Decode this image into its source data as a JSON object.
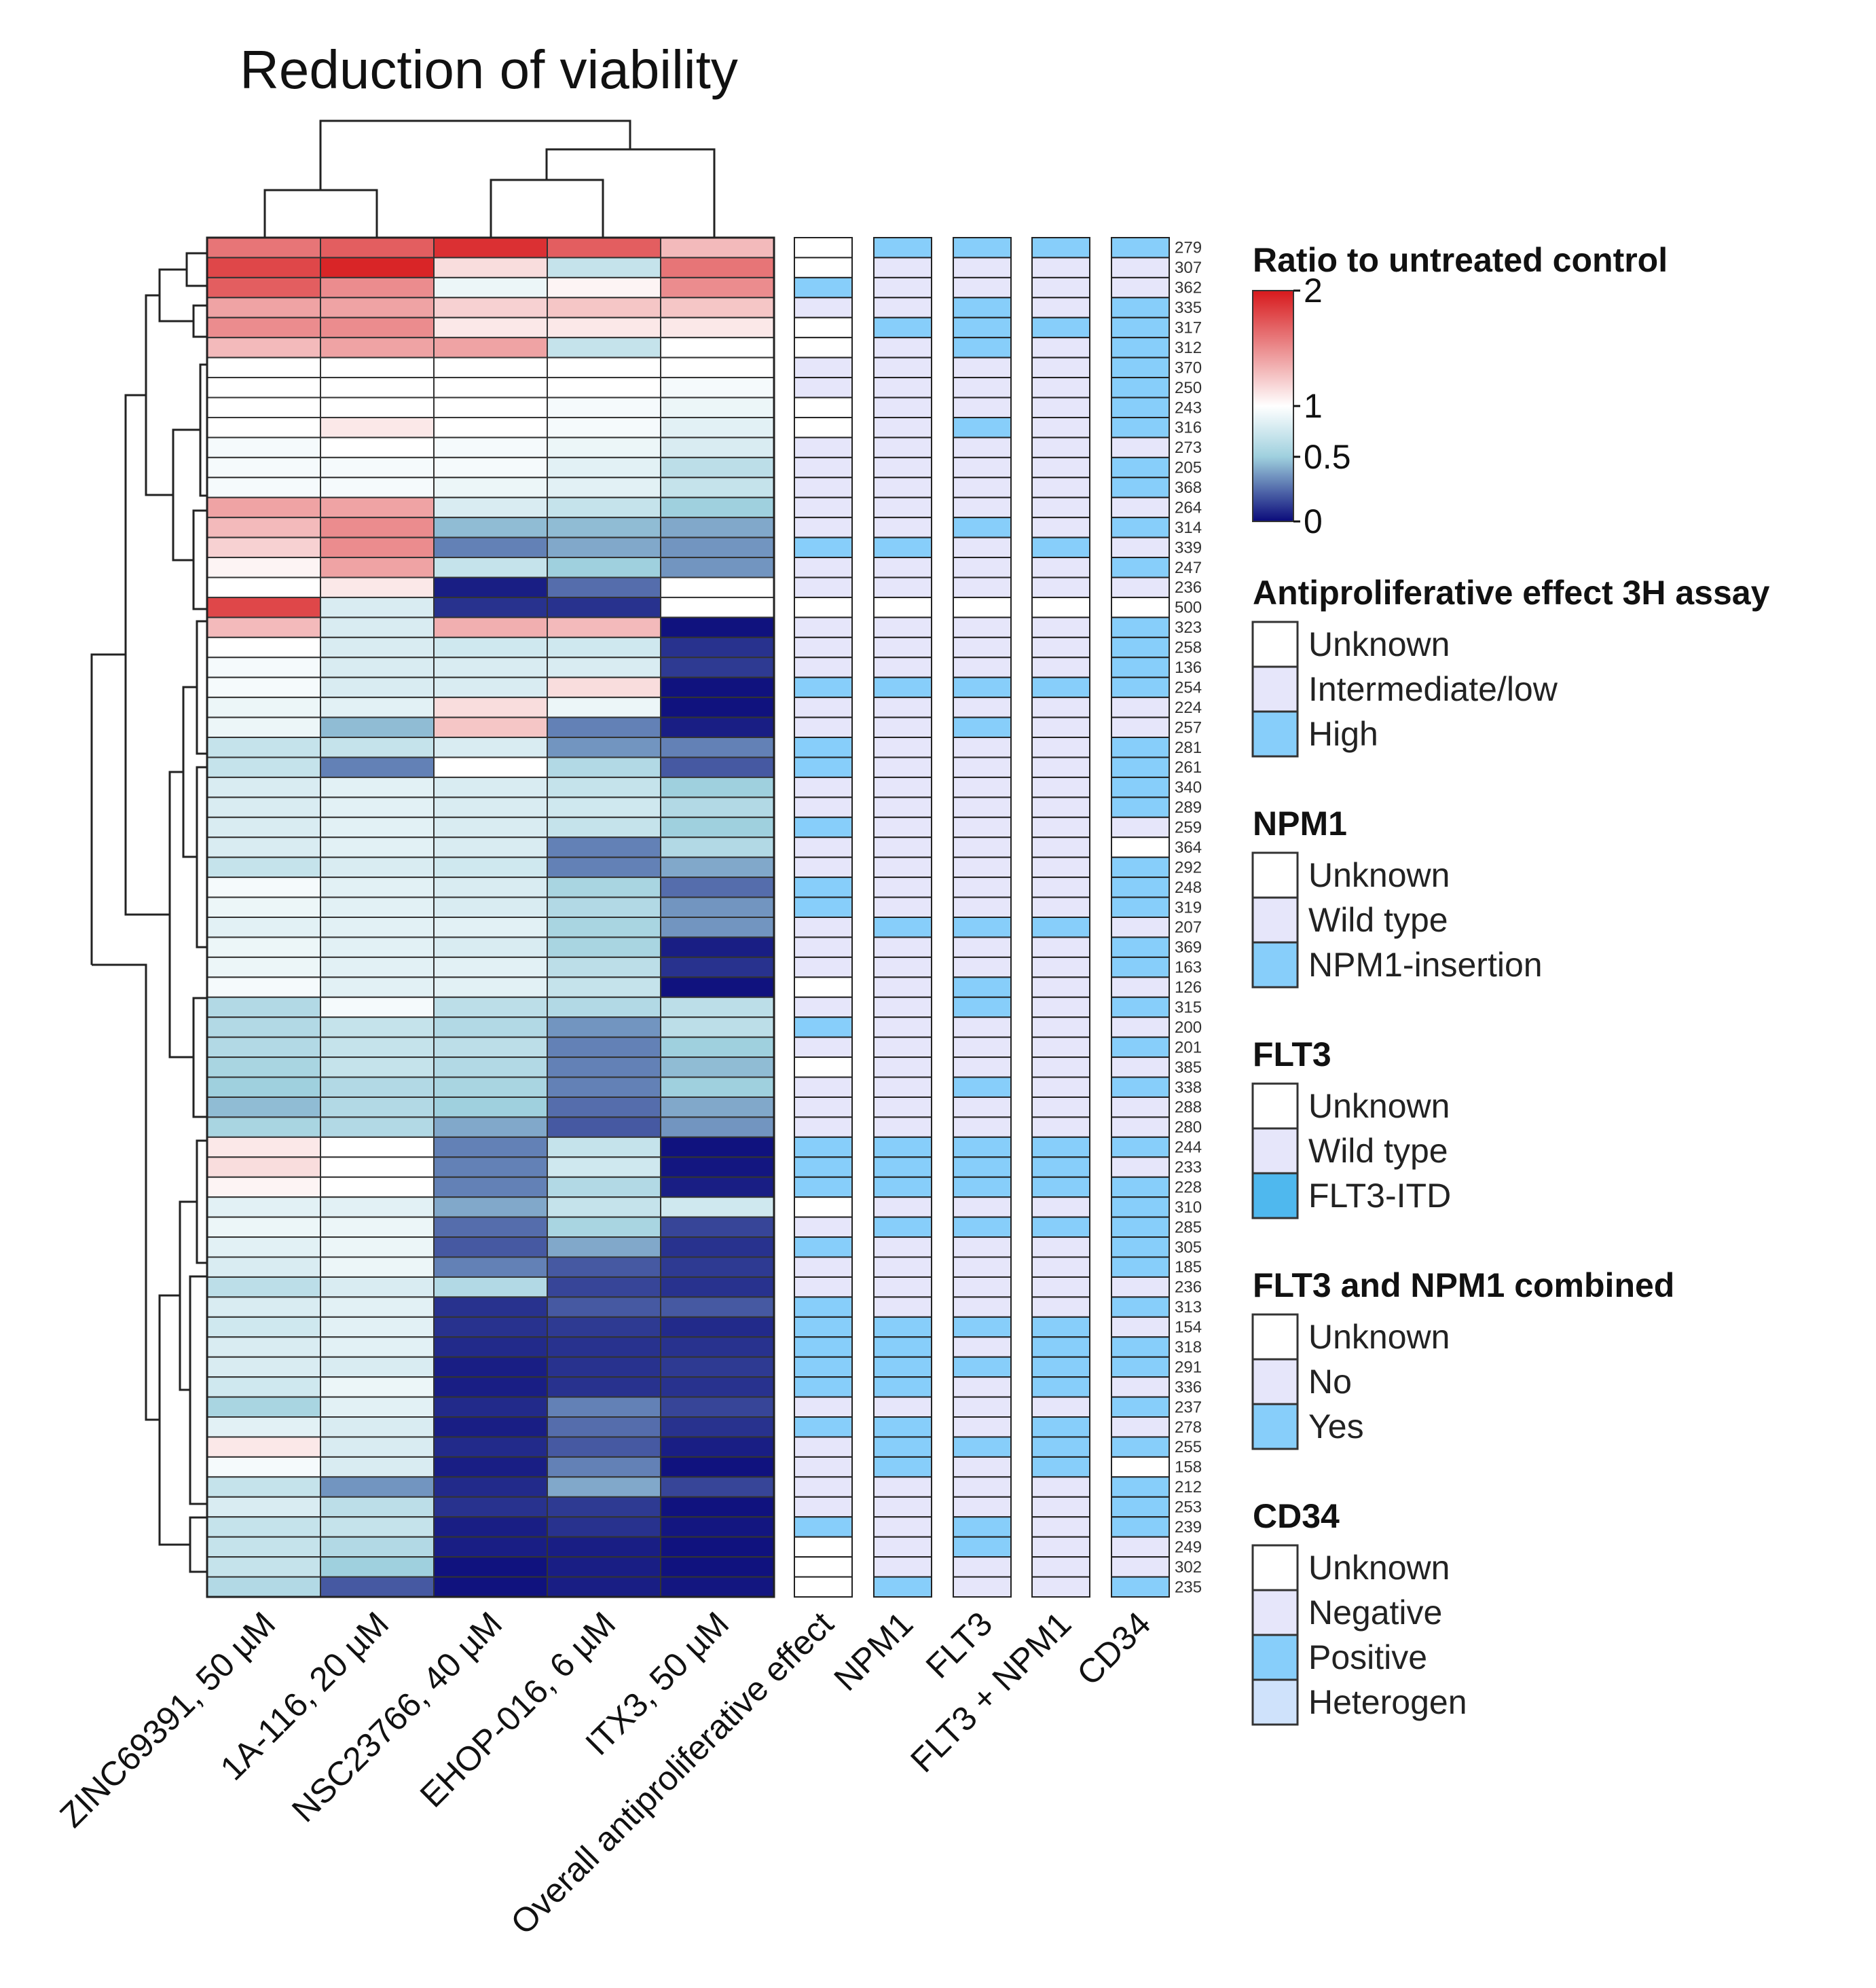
{
  "chart_data": {
    "type": "heatmap",
    "title": "Reduction of viability",
    "columns": [
      "ZINC69391, 50 µM",
      "1A-116, 20 µM",
      "NSC23766, 40 µM",
      "EHOP-016, 6 µM",
      "ITX3, 50 µM"
    ],
    "annotation_columns": [
      "Overall antiproliferative effect",
      "NPM1",
      "FLT3",
      "FLT3 + NPM1",
      "CD34"
    ],
    "row_labels": [
      "279",
      "307",
      "362",
      "335",
      "317",
      "312",
      "370",
      "250",
      "243",
      "316",
      "273",
      "205",
      "368",
      "264",
      "314",
      "339",
      "247",
      "236",
      "500",
      "323",
      "258",
      "136",
      "254",
      "224",
      "257",
      "281",
      "261",
      "340",
      "289",
      "259",
      "364",
      "292",
      "248",
      "319",
      "207",
      "369",
      "163",
      "126",
      "315",
      "200",
      "201",
      "385",
      "338",
      "288",
      "280",
      "244",
      "233",
      "228",
      "310",
      "285",
      "305",
      "185",
      "236",
      "313",
      "154",
      "318",
      "291",
      "336",
      "237",
      "278",
      "255",
      "158",
      "212",
      "253",
      "239",
      "249",
      "302",
      "235"
    ],
    "color_scale": {
      "title": "Ratio to untreated control",
      "ticks": [
        "2",
        "1",
        "0.5",
        "0"
      ],
      "tick_values": [
        2,
        1,
        0.5,
        0
      ],
      "colors": [
        "#d7191c",
        "#ffffff",
        "#9fd0de",
        "#0a0a7a"
      ]
    },
    "values": [
      [
        1.6,
        1.7,
        1.9,
        1.7,
        1.3
      ],
      [
        1.8,
        1.95,
        1.15,
        0.7,
        1.6
      ],
      [
        1.7,
        1.5,
        0.9,
        1.05,
        1.5
      ],
      [
        1.4,
        1.4,
        1.2,
        1.25,
        1.25
      ],
      [
        1.5,
        1.5,
        1.1,
        1.1,
        1.1
      ],
      [
        1.3,
        1.4,
        1.4,
        0.7,
        1.0
      ],
      [
        1.0,
        1.0,
        1.0,
        1.0,
        1.0
      ],
      [
        1.0,
        1.0,
        1.0,
        1.0,
        0.95
      ],
      [
        1.0,
        1.0,
        1.0,
        0.95,
        0.9
      ],
      [
        1.0,
        1.1,
        1.0,
        0.95,
        0.85
      ],
      [
        0.95,
        1.0,
        0.95,
        0.9,
        0.8
      ],
      [
        0.95,
        0.95,
        0.95,
        0.85,
        0.65
      ],
      [
        0.95,
        0.95,
        0.9,
        0.85,
        0.7
      ],
      [
        1.4,
        1.4,
        0.8,
        0.7,
        0.5
      ],
      [
        1.3,
        1.5,
        0.45,
        0.45,
        0.4
      ],
      [
        1.2,
        1.5,
        0.3,
        0.4,
        0.35
      ],
      [
        1.05,
        1.4,
        0.7,
        0.5,
        0.35
      ],
      [
        1.0,
        1.1,
        0.05,
        0.25,
        1.0
      ],
      [
        1.8,
        0.8,
        0.1,
        0.1,
        1.0
      ],
      [
        1.3,
        0.8,
        1.35,
        1.3,
        0.02
      ],
      [
        1.0,
        0.8,
        0.75,
        0.75,
        0.1
      ],
      [
        0.95,
        0.8,
        0.8,
        0.8,
        0.12
      ],
      [
        0.95,
        0.8,
        0.8,
        1.15,
        0.02
      ],
      [
        0.9,
        0.85,
        1.15,
        0.9,
        0.02
      ],
      [
        0.9,
        0.45,
        1.25,
        0.3,
        0.05
      ],
      [
        0.7,
        0.7,
        0.8,
        0.35,
        0.3
      ],
      [
        0.7,
        0.3,
        1.0,
        0.6,
        0.2
      ],
      [
        0.8,
        0.85,
        0.8,
        0.7,
        0.5
      ],
      [
        0.8,
        0.85,
        0.8,
        0.75,
        0.6
      ],
      [
        0.8,
        0.85,
        0.8,
        0.7,
        0.5
      ],
      [
        0.8,
        0.85,
        0.8,
        0.3,
        0.6
      ],
      [
        0.7,
        0.8,
        0.75,
        0.3,
        0.4
      ],
      [
        0.95,
        0.85,
        0.8,
        0.55,
        0.25
      ],
      [
        0.9,
        0.85,
        0.8,
        0.6,
        0.35
      ],
      [
        0.85,
        0.85,
        0.85,
        0.55,
        0.35
      ],
      [
        0.9,
        0.85,
        0.8,
        0.55,
        0.05
      ],
      [
        0.9,
        0.85,
        0.85,
        0.65,
        0.1
      ],
      [
        0.95,
        0.85,
        0.85,
        0.7,
        0.02
      ],
      [
        0.6,
        0.95,
        0.65,
        0.6,
        0.65
      ],
      [
        0.6,
        0.7,
        0.6,
        0.35,
        0.65
      ],
      [
        0.6,
        0.7,
        0.65,
        0.3,
        0.5
      ],
      [
        0.55,
        0.7,
        0.6,
        0.3,
        0.45
      ],
      [
        0.5,
        0.6,
        0.55,
        0.3,
        0.5
      ],
      [
        0.45,
        0.6,
        0.5,
        0.25,
        0.4
      ],
      [
        0.55,
        0.6,
        0.4,
        0.2,
        0.35
      ],
      [
        1.1,
        1.0,
        0.3,
        0.7,
        0.02
      ],
      [
        1.15,
        1.0,
        0.3,
        0.75,
        0.03
      ],
      [
        1.05,
        1.0,
        0.3,
        0.6,
        0.05
      ],
      [
        0.85,
        0.85,
        0.4,
        0.7,
        0.75
      ],
      [
        0.9,
        0.9,
        0.25,
        0.55,
        0.15
      ],
      [
        0.85,
        0.9,
        0.2,
        0.4,
        0.1
      ],
      [
        0.8,
        0.9,
        0.3,
        0.2,
        0.12
      ],
      [
        0.65,
        0.8,
        0.6,
        0.15,
        0.1
      ],
      [
        0.8,
        0.85,
        0.1,
        0.2,
        0.2
      ],
      [
        0.75,
        0.85,
        0.1,
        0.12,
        0.08
      ],
      [
        0.8,
        0.85,
        0.08,
        0.1,
        0.1
      ],
      [
        0.8,
        0.8,
        0.05,
        0.1,
        0.12
      ],
      [
        0.75,
        0.9,
        0.05,
        0.1,
        0.1
      ],
      [
        0.55,
        0.85,
        0.08,
        0.3,
        0.15
      ],
      [
        0.85,
        0.8,
        0.05,
        0.25,
        0.1
      ],
      [
        1.1,
        0.8,
        0.08,
        0.2,
        0.05
      ],
      [
        0.95,
        0.8,
        0.05,
        0.3,
        0.02
      ],
      [
        0.7,
        0.35,
        0.08,
        0.4,
        0.15
      ],
      [
        0.8,
        0.65,
        0.1,
        0.12,
        0.02
      ],
      [
        0.7,
        0.7,
        0.05,
        0.1,
        0.03
      ],
      [
        0.7,
        0.6,
        0.05,
        0.05,
        0.02
      ],
      [
        0.7,
        0.5,
        0.02,
        0.05,
        0.02
      ],
      [
        0.6,
        0.2,
        0.02,
        0.05,
        0.03
      ]
    ],
    "annotations": [
      [
        "U",
        "H",
        "H",
        "H",
        "H"
      ],
      [
        "U",
        "N",
        "N",
        "N",
        "N"
      ],
      [
        "H",
        "N",
        "N",
        "N",
        "N"
      ],
      [
        "I",
        "N",
        "H",
        "N",
        "H"
      ],
      [
        "U",
        "H",
        "H",
        "H",
        "H"
      ],
      [
        "U",
        "N",
        "H",
        "N",
        "H"
      ],
      [
        "I",
        "N",
        "N",
        "N",
        "H"
      ],
      [
        "I",
        "N",
        "N",
        "N",
        "H"
      ],
      [
        "U",
        "N",
        "N",
        "N",
        "H"
      ],
      [
        "U",
        "N",
        "H",
        "N",
        "H"
      ],
      [
        "I",
        "N",
        "N",
        "N",
        "N"
      ],
      [
        "I",
        "N",
        "N",
        "N",
        "H"
      ],
      [
        "I",
        "N",
        "N",
        "N",
        "H"
      ],
      [
        "I",
        "N",
        "N",
        "N",
        "N"
      ],
      [
        "I",
        "N",
        "H",
        "N",
        "H"
      ],
      [
        "H",
        "H",
        "N",
        "H",
        "N"
      ],
      [
        "I",
        "N",
        "N",
        "N",
        "H"
      ],
      [
        "I",
        "N",
        "N",
        "N",
        "N"
      ],
      [
        "U",
        "U",
        "U",
        "U",
        "U"
      ],
      [
        "I",
        "N",
        "N",
        "N",
        "H"
      ],
      [
        "I",
        "N",
        "N",
        "N",
        "H"
      ],
      [
        "I",
        "N",
        "N",
        "N",
        "H"
      ],
      [
        "H",
        "H",
        "H",
        "H",
        "H"
      ],
      [
        "I",
        "N",
        "N",
        "N",
        "N"
      ],
      [
        "I",
        "N",
        "H",
        "N",
        "N"
      ],
      [
        "H",
        "N",
        "N",
        "N",
        "H"
      ],
      [
        "H",
        "N",
        "N",
        "N",
        "H"
      ],
      [
        "I",
        "N",
        "N",
        "N",
        "H"
      ],
      [
        "I",
        "N",
        "N",
        "N",
        "H"
      ],
      [
        "H",
        "N",
        "N",
        "N",
        "N"
      ],
      [
        "I",
        "N",
        "N",
        "N",
        "U"
      ],
      [
        "I",
        "N",
        "N",
        "N",
        "H"
      ],
      [
        "H",
        "N",
        "N",
        "N",
        "H"
      ],
      [
        "H",
        "N",
        "N",
        "N",
        "H"
      ],
      [
        "I",
        "H",
        "H",
        "H",
        "N"
      ],
      [
        "I",
        "N",
        "N",
        "N",
        "H"
      ],
      [
        "I",
        "N",
        "N",
        "N",
        "H"
      ],
      [
        "U",
        "N",
        "H",
        "N",
        "N"
      ],
      [
        "I",
        "N",
        "H",
        "N",
        "H"
      ],
      [
        "H",
        "N",
        "N",
        "N",
        "N"
      ],
      [
        "I",
        "N",
        "N",
        "N",
        "H"
      ],
      [
        "U",
        "N",
        "N",
        "N",
        "N"
      ],
      [
        "I",
        "N",
        "H",
        "N",
        "H"
      ],
      [
        "I",
        "N",
        "N",
        "N",
        "N"
      ],
      [
        "I",
        "N",
        "N",
        "N",
        "N"
      ],
      [
        "H",
        "H",
        "H",
        "H",
        "H"
      ],
      [
        "H",
        "H",
        "H",
        "H",
        "N"
      ],
      [
        "H",
        "H",
        "H",
        "H",
        "H"
      ],
      [
        "U",
        "N",
        "N",
        "N",
        "H"
      ],
      [
        "I",
        "H",
        "H",
        "H",
        "H"
      ],
      [
        "H",
        "N",
        "N",
        "N",
        "H"
      ],
      [
        "I",
        "N",
        "N",
        "N",
        "H"
      ],
      [
        "I",
        "N",
        "N",
        "N",
        "N"
      ],
      [
        "H",
        "N",
        "N",
        "N",
        "H"
      ],
      [
        "H",
        "H",
        "H",
        "H",
        "N"
      ],
      [
        "H",
        "H",
        "N",
        "H",
        "H"
      ],
      [
        "H",
        "H",
        "H",
        "H",
        "H"
      ],
      [
        "H",
        "H",
        "N",
        "H",
        "N"
      ],
      [
        "I",
        "N",
        "N",
        "N",
        "H"
      ],
      [
        "H",
        "H",
        "N",
        "H",
        "N"
      ],
      [
        "I",
        "H",
        "H",
        "H",
        "H"
      ],
      [
        "I",
        "H",
        "N",
        "H",
        "U"
      ],
      [
        "I",
        "N",
        "N",
        "N",
        "H"
      ],
      [
        "I",
        "N",
        "N",
        "N",
        "H"
      ],
      [
        "H",
        "N",
        "H",
        "N",
        "H"
      ],
      [
        "U",
        "N",
        "H",
        "N",
        "N"
      ],
      [
        "U",
        "N",
        "N",
        "N",
        "N"
      ],
      [
        "U",
        "H",
        "N",
        "N",
        "H"
      ]
    ],
    "annotation_key": {
      "U": "Unknown",
      "I": "Intermediate/low",
      "N": "Wild type / No / Negative",
      "H": "High / insertion / ITD / Yes / Positive"
    },
    "annotation_colors": {
      "U": "#ffffff",
      "I": "#e6e6fa",
      "N": "#e6e6fa",
      "H": "#87cefa"
    },
    "legends": [
      {
        "title": "Antiproliferative effect 3H assay",
        "items": [
          {
            "label": "Unknown",
            "color": "#ffffff"
          },
          {
            "label": "Intermediate/low",
            "color": "#e6e6fa"
          },
          {
            "label": "High",
            "color": "#87cefa"
          }
        ]
      },
      {
        "title": "NPM1",
        "items": [
          {
            "label": "Unknown",
            "color": "#ffffff"
          },
          {
            "label": "Wild type",
            "color": "#e6e6fa"
          },
          {
            "label": "NPM1-insertion",
            "color": "#87cefa"
          }
        ]
      },
      {
        "title": "FLT3",
        "items": [
          {
            "label": "Unknown",
            "color": "#ffffff"
          },
          {
            "label": "Wild type",
            "color": "#e6e6fa"
          },
          {
            "label": "FLT3-ITD",
            "color": "#4fb8ee"
          }
        ]
      },
      {
        "title": "FLT3 and NPM1 combined",
        "items": [
          {
            "label": "Unknown",
            "color": "#ffffff"
          },
          {
            "label": "No",
            "color": "#e6e6fa"
          },
          {
            "label": "Yes",
            "color": "#87cefa"
          }
        ]
      },
      {
        "title": "CD34",
        "items": [
          {
            "label": "Unknown",
            "color": "#ffffff"
          },
          {
            "label": "Negative",
            "color": "#e6e6fa"
          },
          {
            "label": "Positive",
            "color": "#87cefa"
          },
          {
            "label": "Heterogen",
            "color": "#cfe2fb"
          }
        ]
      }
    ]
  }
}
